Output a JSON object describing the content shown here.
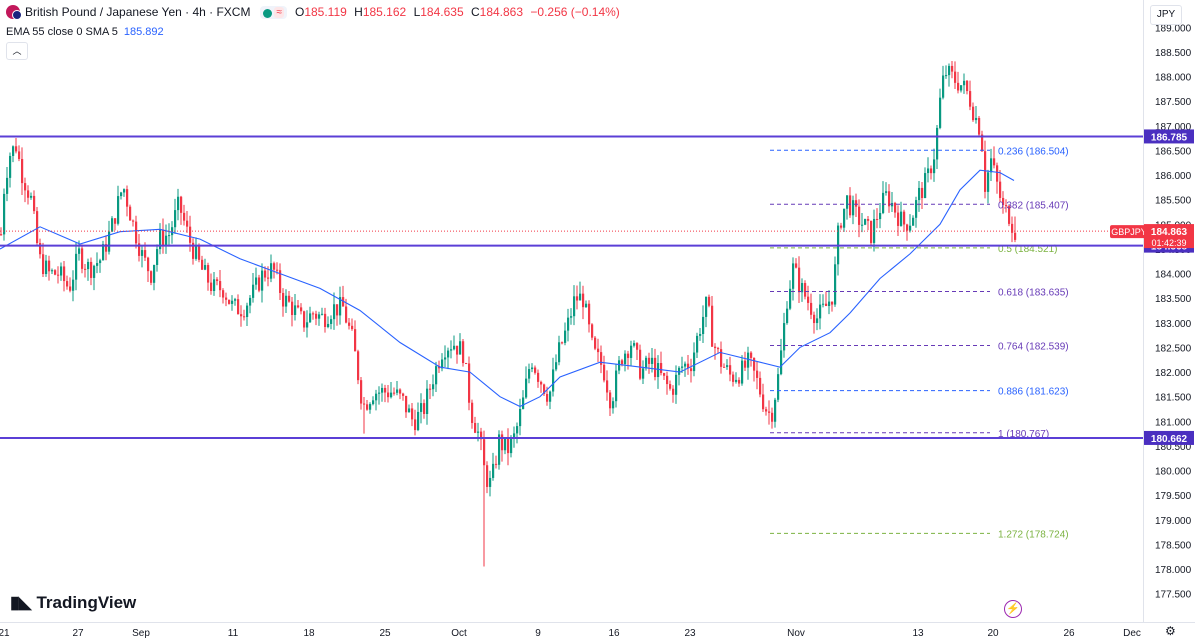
{
  "header": {
    "title": "British Pound / Japanese Yen · 4h · FXCM",
    "ohlc": [
      {
        "k": "O",
        "v": "185.119"
      },
      {
        "k": "H",
        "v": "185.162"
      },
      {
        "k": "L",
        "v": "184.635"
      },
      {
        "k": "C",
        "v": "184.863"
      },
      {
        "k": "",
        "v": "−0.256 (−0.14%)"
      }
    ],
    "indicator_label": "EMA 55 close 0 SMA 5",
    "indicator_value": "185.892"
  },
  "currency_button": "JPY",
  "logo_text": "TradingView",
  "colors": {
    "up": "#089981",
    "down": "#f23645",
    "ema": "#2962ff",
    "hline": "#5b3fd6",
    "price_badge": "#f23645",
    "ticker_badge": "#f23645",
    "hline_badge": "#4a2fc0",
    "fib_blue": "#2962ff",
    "fib_purple": "#673ab7",
    "fib_green": "#7cb342"
  },
  "chart_data": {
    "type": "candlestick",
    "symbol": "GBPJPY",
    "timeframe": "4h",
    "ylim": [
      177.0,
      189.2
    ],
    "y_ticks": [
      189.0,
      188.5,
      188.0,
      187.5,
      187.0,
      186.5,
      186.0,
      185.5,
      185.0,
      184.5,
      184.0,
      183.5,
      183.0,
      182.5,
      182.0,
      181.5,
      181.0,
      180.5,
      180.0,
      179.5,
      179.0,
      178.5,
      178.0,
      177.5
    ],
    "x_labels": [
      "21",
      "27",
      "Sep",
      "11",
      "18",
      "25",
      "Oct",
      "9",
      "16",
      "23",
      "Nov",
      "13",
      "20",
      "26",
      "Dec"
    ],
    "price_path": [
      {
        "x": 0,
        "p": 184.8
      },
      {
        "x": 2,
        "p": 185.6
      },
      {
        "x": 8,
        "p": 186.4
      },
      {
        "x": 15,
        "p": 186.6
      },
      {
        "x": 20,
        "p": 186.1
      },
      {
        "x": 30,
        "p": 185.5
      },
      {
        "x": 38,
        "p": 184.3
      },
      {
        "x": 48,
        "p": 184.0
      },
      {
        "x": 58,
        "p": 184.0
      },
      {
        "x": 68,
        "p": 183.7
      },
      {
        "x": 78,
        "p": 184.4
      },
      {
        "x": 88,
        "p": 184.1
      },
      {
        "x": 100,
        "p": 184.3
      },
      {
        "x": 110,
        "p": 184.9
      },
      {
        "x": 122,
        "p": 185.8
      },
      {
        "x": 132,
        "p": 185.0
      },
      {
        "x": 142,
        "p": 184.3
      },
      {
        "x": 150,
        "p": 184.0
      },
      {
        "x": 158,
        "p": 184.7
      },
      {
        "x": 168,
        "p": 184.8
      },
      {
        "x": 178,
        "p": 185.4
      },
      {
        "x": 188,
        "p": 184.7
      },
      {
        "x": 200,
        "p": 184.1
      },
      {
        "x": 212,
        "p": 183.7
      },
      {
        "x": 222,
        "p": 183.7
      },
      {
        "x": 232,
        "p": 183.3
      },
      {
        "x": 242,
        "p": 183.3
      },
      {
        "x": 252,
        "p": 183.6
      },
      {
        "x": 262,
        "p": 184.0
      },
      {
        "x": 272,
        "p": 184.1
      },
      {
        "x": 282,
        "p": 183.5
      },
      {
        "x": 292,
        "p": 183.3
      },
      {
        "x": 302,
        "p": 183.0
      },
      {
        "x": 312,
        "p": 183.2
      },
      {
        "x": 322,
        "p": 183.1
      },
      {
        "x": 332,
        "p": 183.3
      },
      {
        "x": 342,
        "p": 183.3
      },
      {
        "x": 352,
        "p": 182.6
      },
      {
        "x": 362,
        "p": 181.3
      },
      {
        "x": 372,
        "p": 181.6
      },
      {
        "x": 382,
        "p": 181.6
      },
      {
        "x": 392,
        "p": 181.6
      },
      {
        "x": 402,
        "p": 181.4
      },
      {
        "x": 412,
        "p": 181.0
      },
      {
        "x": 422,
        "p": 181.2
      },
      {
        "x": 432,
        "p": 181.9
      },
      {
        "x": 442,
        "p": 182.5
      },
      {
        "x": 452,
        "p": 182.6
      },
      {
        "x": 462,
        "p": 182.4
      },
      {
        "x": 470,
        "p": 181.2
      },
      {
        "x": 478,
        "p": 180.7
      },
      {
        "x": 484,
        "p": 179.9
      },
      {
        "x": 490,
        "p": 179.7
      },
      {
        "x": 498,
        "p": 180.6
      },
      {
        "x": 506,
        "p": 180.4
      },
      {
        "x": 514,
        "p": 180.7
      },
      {
        "x": 522,
        "p": 181.4
      },
      {
        "x": 530,
        "p": 182.3
      },
      {
        "x": 538,
        "p": 181.9
      },
      {
        "x": 548,
        "p": 181.5
      },
      {
        "x": 556,
        "p": 182.3
      },
      {
        "x": 566,
        "p": 182.9
      },
      {
        "x": 574,
        "p": 183.5
      },
      {
        "x": 582,
        "p": 183.5
      },
      {
        "x": 592,
        "p": 182.4
      },
      {
        "x": 602,
        "p": 182.1
      },
      {
        "x": 610,
        "p": 181.4
      },
      {
        "x": 620,
        "p": 182.3
      },
      {
        "x": 630,
        "p": 182.6
      },
      {
        "x": 640,
        "p": 182.0
      },
      {
        "x": 650,
        "p": 182.2
      },
      {
        "x": 660,
        "p": 181.9
      },
      {
        "x": 670,
        "p": 181.6
      },
      {
        "x": 680,
        "p": 182.1
      },
      {
        "x": 690,
        "p": 182.2
      },
      {
        "x": 700,
        "p": 183.0
      },
      {
        "x": 706,
        "p": 183.4
      },
      {
        "x": 712,
        "p": 182.6
      },
      {
        "x": 720,
        "p": 182.2
      },
      {
        "x": 730,
        "p": 181.9
      },
      {
        "x": 740,
        "p": 182.0
      },
      {
        "x": 748,
        "p": 182.2
      },
      {
        "x": 756,
        "p": 181.8
      },
      {
        "x": 764,
        "p": 181.3
      },
      {
        "x": 770,
        "p": 181.1
      },
      {
        "x": 778,
        "p": 182.0
      },
      {
        "x": 786,
        "p": 183.5
      },
      {
        "x": 792,
        "p": 184.1
      },
      {
        "x": 800,
        "p": 183.7
      },
      {
        "x": 808,
        "p": 183.4
      },
      {
        "x": 816,
        "p": 183.1
      },
      {
        "x": 824,
        "p": 183.3
      },
      {
        "x": 832,
        "p": 183.6
      },
      {
        "x": 838,
        "p": 185.0
      },
      {
        "x": 846,
        "p": 185.5
      },
      {
        "x": 854,
        "p": 185.2
      },
      {
        "x": 862,
        "p": 185.0
      },
      {
        "x": 870,
        "p": 184.8
      },
      {
        "x": 878,
        "p": 185.3
      },
      {
        "x": 886,
        "p": 185.6
      },
      {
        "x": 894,
        "p": 185.3
      },
      {
        "x": 902,
        "p": 185.0
      },
      {
        "x": 910,
        "p": 185.1
      },
      {
        "x": 918,
        "p": 185.6
      },
      {
        "x": 926,
        "p": 185.9
      },
      {
        "x": 934,
        "p": 186.5
      },
      {
        "x": 940,
        "p": 187.7
      },
      {
        "x": 944,
        "p": 188.1
      },
      {
        "x": 950,
        "p": 188.0
      },
      {
        "x": 956,
        "p": 187.9
      },
      {
        "x": 962,
        "p": 187.8
      },
      {
        "x": 968,
        "p": 187.6
      },
      {
        "x": 974,
        "p": 187.2
      },
      {
        "x": 980,
        "p": 186.9
      },
      {
        "x": 984,
        "p": 185.8
      },
      {
        "x": 990,
        "p": 186.3
      },
      {
        "x": 996,
        "p": 185.8
      },
      {
        "x": 1002,
        "p": 185.3
      },
      {
        "x": 1008,
        "p": 185.2
      },
      {
        "x": 1014,
        "p": 184.86
      }
    ],
    "ema_path": [
      {
        "x": 0,
        "p": 184.5
      },
      {
        "x": 40,
        "p": 184.95
      },
      {
        "x": 80,
        "p": 184.6
      },
      {
        "x": 120,
        "p": 184.85
      },
      {
        "x": 160,
        "p": 184.9
      },
      {
        "x": 200,
        "p": 184.7
      },
      {
        "x": 240,
        "p": 184.3
      },
      {
        "x": 280,
        "p": 184.0
      },
      {
        "x": 320,
        "p": 183.7
      },
      {
        "x": 360,
        "p": 183.25
      },
      {
        "x": 400,
        "p": 182.6
      },
      {
        "x": 440,
        "p": 182.1
      },
      {
        "x": 470,
        "p": 182.0
      },
      {
        "x": 500,
        "p": 181.5
      },
      {
        "x": 520,
        "p": 181.3
      },
      {
        "x": 540,
        "p": 181.5
      },
      {
        "x": 560,
        "p": 181.9
      },
      {
        "x": 600,
        "p": 182.2
      },
      {
        "x": 640,
        "p": 182.1
      },
      {
        "x": 680,
        "p": 182.0
      },
      {
        "x": 720,
        "p": 182.4
      },
      {
        "x": 760,
        "p": 182.2
      },
      {
        "x": 780,
        "p": 182.1
      },
      {
        "x": 800,
        "p": 182.5
      },
      {
        "x": 830,
        "p": 182.8
      },
      {
        "x": 850,
        "p": 183.2
      },
      {
        "x": 880,
        "p": 183.9
      },
      {
        "x": 910,
        "p": 184.4
      },
      {
        "x": 940,
        "p": 185.0
      },
      {
        "x": 960,
        "p": 185.7
      },
      {
        "x": 980,
        "p": 186.1
      },
      {
        "x": 1000,
        "p": 186.05
      },
      {
        "x": 1014,
        "p": 185.89
      }
    ],
    "horizontal_levels": [
      {
        "price": 186.785,
        "label": "186.785"
      },
      {
        "price": 184.568,
        "label": "184.568"
      },
      {
        "price": 180.662,
        "label": "180.662"
      }
    ],
    "fibonacci": {
      "x_start": 770,
      "x_end": 990,
      "levels": [
        {
          "price": 186.504,
          "label": "0.236 (186.504)",
          "color": "fib_blue"
        },
        {
          "price": 185.407,
          "label": "0.382 (185.407)",
          "color": "fib_purple"
        },
        {
          "price": 184.521,
          "label": "0.5 (184.521)",
          "color": "fib_green"
        },
        {
          "price": 183.635,
          "label": "0.618 (183.635)",
          "color": "fib_purple"
        },
        {
          "price": 182.539,
          "label": "0.764 (182.539)",
          "color": "fib_purple"
        },
        {
          "price": 181.623,
          "label": "0.886 (181.623)",
          "color": "fib_blue"
        },
        {
          "price": 180.767,
          "label": "1 (180.767)",
          "color": "fib_purple"
        },
        {
          "price": 178.724,
          "label": "1.272 (178.724)",
          "color": "fib_green"
        }
      ]
    },
    "last_price": {
      "price": 184.863,
      "label": "184.863",
      "countdown": "01:42:39",
      "ticker": "GBPJPY"
    },
    "special_wicks": [
      {
        "x": 484,
        "low": 178.05
      },
      {
        "x": 362,
        "low": 180.75
      },
      {
        "x": 770,
        "low": 180.85
      }
    ]
  }
}
